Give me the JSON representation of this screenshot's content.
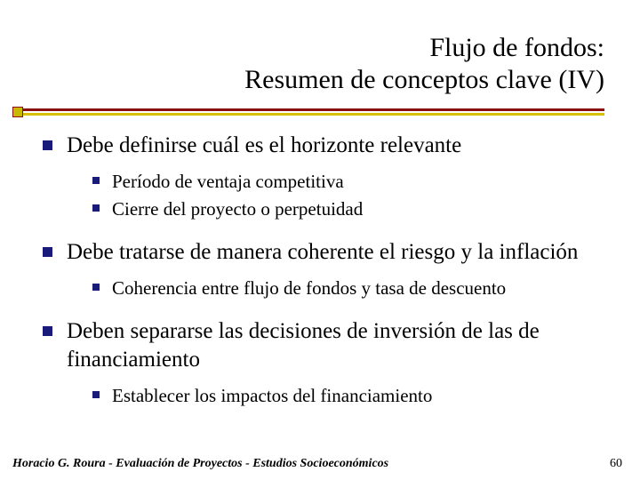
{
  "title": {
    "line1": "Flujo de fondos:",
    "line2": "Resumen de conceptos clave (IV)"
  },
  "bullets": {
    "b1": "Debe definirse cuál es el horizonte relevante",
    "b1s1": "Período de ventaja competitiva",
    "b1s2": "Cierre del proyecto o perpetuidad",
    "b2": "Debe tratarse de manera coherente el riesgo y la inflación",
    "b2s1": "Coherencia entre flujo de fondos y tasa de descuento",
    "b3": "Deben separarse las decisiones de inversión de las de financiamiento",
    "b3s1": "Establecer los impactos del financiamiento"
  },
  "footer": {
    "left": "Horacio G. Roura - Evaluación de Proyectos - Estudios Socioeconómicos",
    "page": "60"
  },
  "colors": {
    "bullet": "#1a1a7a",
    "rule_red": "#8a0f0f",
    "rule_gold": "#d7c000",
    "square_fill": "#c9b800",
    "background": "#ffffff",
    "text": "#000000"
  },
  "typography": {
    "title_fontsize": 30,
    "lvl1_fontsize": 25,
    "lvl2_fontsize": 21,
    "footer_fontsize": 14,
    "font_family": "Times New Roman"
  }
}
